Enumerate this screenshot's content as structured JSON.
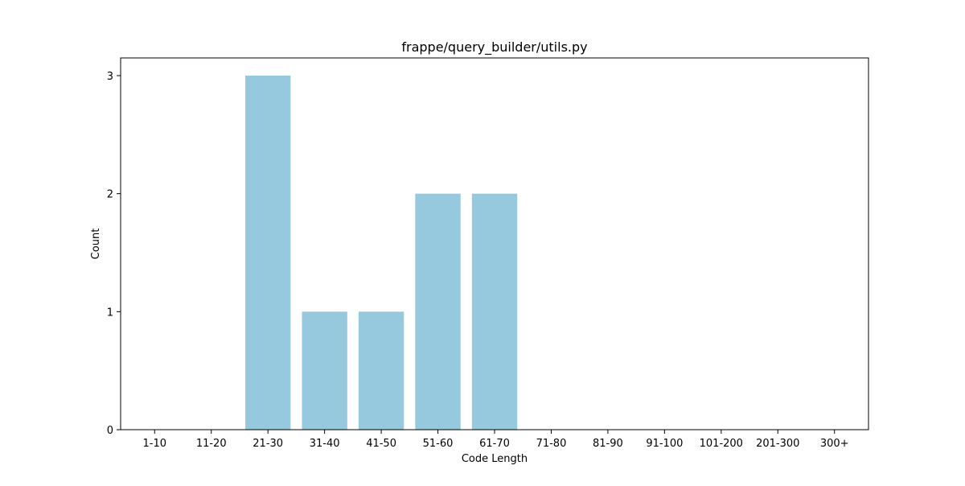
{
  "chart_data": {
    "type": "bar",
    "title": "frappe/query_builder/utils.py",
    "xlabel": "Code Length",
    "ylabel": "Count",
    "categories": [
      "1-10",
      "11-20",
      "21-30",
      "31-40",
      "41-50",
      "51-60",
      "61-70",
      "71-80",
      "81-90",
      "91-100",
      "101-200",
      "201-300",
      "300+"
    ],
    "values": [
      0,
      0,
      3,
      1,
      1,
      2,
      2,
      0,
      0,
      0,
      0,
      0,
      0
    ],
    "ylim": [
      0,
      3.15
    ],
    "yticks": [
      0,
      1,
      2,
      3
    ],
    "grid": false,
    "legend": "none",
    "bar_color": "#96c9dd"
  }
}
